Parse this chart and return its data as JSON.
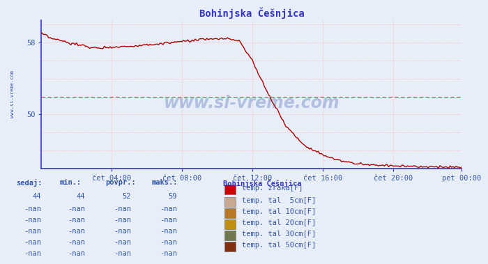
{
  "title": "Bohinjska Češnjica",
  "bg_color": "#e8eef8",
  "plot_bg_color": "#e8eef8",
  "line_color": "#aa0000",
  "grid_color": "#ffaaaa",
  "axis_color": "#3333cc",
  "text_color": "#3355aa",
  "yticks": [
    50,
    58
  ],
  "ymin": 44.0,
  "ymax": 60.5,
  "xtick_labels": [
    "čet 04:00",
    "čet 08:00",
    "čet 12:00",
    "čet 16:00",
    "čet 20:00",
    "pet 00:00"
  ],
  "watermark": "www.si-vreme.com",
  "table_headers": [
    "sedaj:",
    "min.:",
    "povpr.:",
    "maks.:"
  ],
  "table_row1": [
    "44",
    "44",
    "52",
    "59"
  ],
  "legend_title": "Bohinjska Češnjica",
  "legend_items": [
    {
      "label": "temp. zraka[F]",
      "color": "#cc0000"
    },
    {
      "label": "temp. tal  5cm[F]",
      "color": "#c8a890"
    },
    {
      "label": "temp. tal 10cm[F]",
      "color": "#b87828"
    },
    {
      "label": "temp. tal 20cm[F]",
      "color": "#c09010"
    },
    {
      "label": "temp. tal 30cm[F]",
      "color": "#707850"
    },
    {
      "label": "temp. tal 50cm[F]",
      "color": "#803010"
    }
  ],
  "avg_line_y": 52.0
}
